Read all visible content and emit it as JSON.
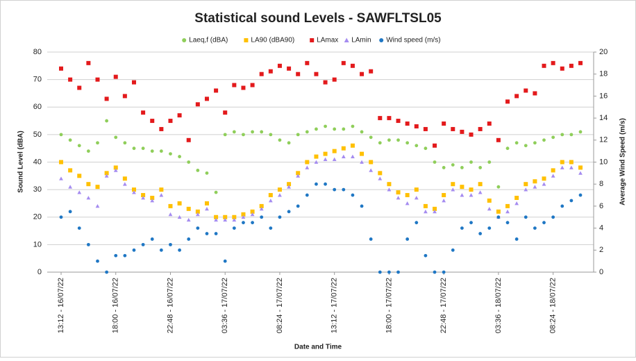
{
  "chart_data": {
    "type": "scatter",
    "title": "Statistical sound Levels - SAWFLTSL05",
    "x_label": "Date and Time",
    "y_label": "Sound Level (dBA)",
    "y2_label": "Average Wind Speed (m/s)",
    "categories": [
      "13:12 - 16/07/22",
      null,
      null,
      null,
      null,
      null,
      "18:00 - 16/07/22",
      null,
      null,
      null,
      null,
      null,
      "22:48 - 16/07/22",
      null,
      null,
      null,
      null,
      null,
      "03:36 - 17/07/22",
      null,
      null,
      null,
      null,
      null,
      "08:24 - 17/07/22",
      null,
      null,
      null,
      null,
      null,
      "13:12 - 17/07/22",
      null,
      null,
      null,
      null,
      null,
      "18:00 - 17/07/22",
      null,
      null,
      null,
      null,
      null,
      "22:48 - 17/07/22",
      null,
      null,
      null,
      null,
      null,
      "03:36 - 18/07/22",
      null,
      null,
      null,
      null,
      null,
      "08:24 - 18/07/22",
      null,
      null,
      null
    ],
    "ylim": [
      0,
      80
    ],
    "yticks": [
      0,
      10,
      20,
      30,
      40,
      50,
      60,
      70,
      80
    ],
    "y2lim": [
      0,
      20
    ],
    "y2ticks": [
      0,
      2,
      4,
      6,
      8,
      10,
      12,
      14,
      16,
      18,
      20
    ],
    "grid": true,
    "legend": "top",
    "series": [
      {
        "name": "Laeq,f (dBA)",
        "color": "#8fce5a",
        "marker": "circle",
        "values": [
          50,
          48,
          46,
          44,
          47,
          55,
          49,
          47,
          45,
          45,
          44,
          44,
          43,
          42,
          40,
          37,
          36,
          29,
          50,
          51,
          50,
          51,
          51,
          50,
          48,
          47,
          50,
          51,
          52,
          53,
          52,
          52,
          53,
          51,
          49,
          47,
          48,
          48,
          47,
          46,
          45,
          40,
          38,
          39,
          38,
          40,
          38,
          40,
          31,
          45,
          47,
          46,
          47,
          48,
          49,
          50,
          50,
          51
        ]
      },
      {
        "name": "LA90  (dBA90)",
        "color": "#ffc000",
        "marker": "square",
        "values": [
          40,
          37,
          35,
          32,
          31,
          36,
          38,
          34,
          30,
          28,
          27,
          30,
          24,
          25,
          23,
          22,
          25,
          20,
          20,
          20,
          21,
          22,
          24,
          28,
          30,
          32,
          36,
          40,
          42,
          43,
          44,
          45,
          46,
          43,
          40,
          36,
          32,
          29,
          28,
          30,
          24,
          23,
          28,
          32,
          31,
          30,
          32,
          26,
          22,
          24,
          27,
          32,
          33,
          34,
          37,
          40,
          40,
          38
        ]
      },
      {
        "name": "LAmax",
        "color": "#e31a1c",
        "marker": "square",
        "values": [
          74,
          70,
          67,
          76,
          70,
          63,
          71,
          64,
          69,
          58,
          55,
          52,
          55,
          57,
          48,
          61,
          63,
          66,
          58,
          68,
          67,
          68,
          72,
          73,
          75,
          74,
          72,
          76,
          72,
          69,
          70,
          76,
          75,
          72,
          73,
          56,
          56,
          55,
          54,
          53,
          52,
          46,
          54,
          52,
          51,
          50,
          52,
          54,
          48,
          62,
          64,
          66,
          65,
          75,
          76,
          74,
          75,
          76
        ]
      },
      {
        "name": "LAmin",
        "color": "#a58cf0",
        "marker": "triangle",
        "values": [
          34,
          31,
          29,
          27,
          24,
          35,
          37,
          32,
          29,
          27,
          26,
          28,
          21,
          20,
          19,
          21,
          23,
          19,
          19,
          19,
          20,
          21,
          23,
          26,
          28,
          31,
          35,
          38,
          40,
          41,
          41,
          42,
          42,
          40,
          37,
          34,
          30,
          27,
          25,
          27,
          22,
          22,
          26,
          30,
          28,
          28,
          29,
          23,
          20,
          22,
          25,
          30,
          31,
          32,
          35,
          38,
          38,
          36
        ]
      },
      {
        "name": "Wind speed (m/s)",
        "color": "#1f77c4",
        "marker": "circle",
        "axis": "y2",
        "values": [
          5,
          5.5,
          4,
          2.5,
          1,
          0,
          1.5,
          1.5,
          2,
          2.5,
          3,
          2,
          2.5,
          2,
          3,
          4,
          3.5,
          3.5,
          1,
          4,
          4.5,
          4.5,
          5,
          4,
          5,
          5.5,
          6,
          7,
          8,
          8,
          7.5,
          7.5,
          7,
          6,
          3,
          0,
          0,
          0,
          3,
          4.5,
          1.5,
          0,
          0,
          2,
          4,
          4.5,
          3.5,
          4,
          5,
          4.5,
          3,
          5,
          4,
          4.5,
          5,
          6,
          6.5,
          7
        ]
      }
    ]
  }
}
